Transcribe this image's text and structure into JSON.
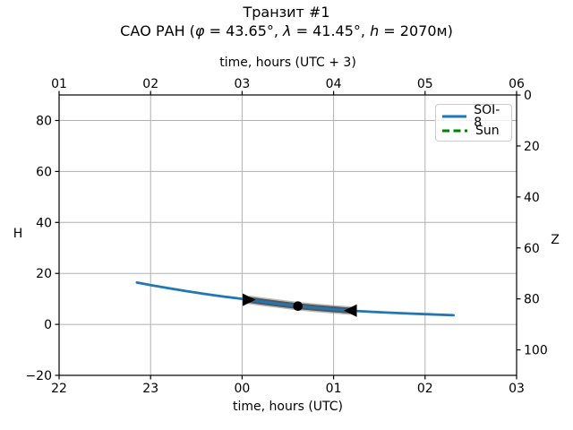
{
  "figure": {
    "title": "Транзит #1",
    "subtitle": "САО РАН (φ = 43.65°, λ = 41.45°, h = 2070м)",
    "subtitle_parts": [
      "САО РАН (",
      "φ",
      " = 43.65°, ",
      "λ",
      " = 41.45°, ",
      "h",
      " = 2070м)"
    ]
  },
  "chart_data": {
    "type": "line",
    "title": "Транзит #1",
    "subtitle": "САО РАН (φ = 43.65°, λ = 41.45°, h = 2070м)",
    "grid": true,
    "grid_color": "#b0b0b0",
    "axes": {
      "bottom": {
        "label": "time, hours (UTC)",
        "tick_labels": [
          "22",
          "23",
          "00",
          "01",
          "02",
          "03"
        ],
        "tick_values": [
          22,
          23,
          24,
          25,
          26,
          27
        ],
        "xlim": [
          22,
          27
        ]
      },
      "top": {
        "label": "time, hours (UTC + 3)",
        "tick_labels": [
          "01",
          "02",
          "03",
          "04",
          "05",
          "06"
        ],
        "tick_values": [
          22,
          23,
          24,
          25,
          26,
          27
        ]
      },
      "left": {
        "label": "H",
        "tick_labels": [
          "80",
          "60",
          "40",
          "20",
          "0",
          "−20"
        ],
        "tick_values": [
          80,
          60,
          40,
          20,
          0,
          -20
        ],
        "ylim": [
          -20,
          90.4
        ]
      },
      "right": {
        "label": "Z",
        "tick_labels": [
          "0",
          "20",
          "40",
          "60",
          "80",
          "100"
        ],
        "tick_values": [
          0,
          20,
          40,
          60,
          80,
          100
        ],
        "relation": "Z = 90 - H"
      }
    },
    "series": [
      {
        "name": "SOI-8",
        "color": "#1f77b4",
        "style": "solid",
        "x_utc": [
          22.85,
          23.0,
          23.2,
          23.4,
          23.6,
          23.8,
          24.0,
          24.2,
          24.4,
          24.6,
          24.8,
          25.0,
          25.2,
          25.4,
          25.6,
          25.8,
          26.0,
          26.31
        ],
        "H": [
          16.4,
          15.4,
          14.2,
          13.0,
          11.9,
          10.9,
          10.0,
          9.0,
          8.1,
          7.2,
          6.5,
          5.9,
          5.35,
          4.95,
          4.6,
          4.3,
          4.0,
          3.6
        ]
      },
      {
        "name": "Sun",
        "color": "#008000",
        "style": "dashed",
        "visible_in_plot": false
      }
    ],
    "transit": {
      "band_color": "#3c3c3c",
      "band_x_utc": [
        24.07,
        25.19
      ],
      "markers": [
        {
          "shape": "triangle-right",
          "name": "ingress",
          "x_utc": 24.07,
          "H": 9.65
        },
        {
          "shape": "circle",
          "name": "mid-transit",
          "x_utc": 24.61,
          "H": 7.17
        },
        {
          "shape": "triangle-left",
          "name": "egress",
          "x_utc": 25.19,
          "H": 5.38
        }
      ]
    },
    "legend": {
      "position": "upper right",
      "entries": [
        {
          "label": "SOI-8"
        },
        {
          "label": "Sun"
        }
      ]
    }
  }
}
